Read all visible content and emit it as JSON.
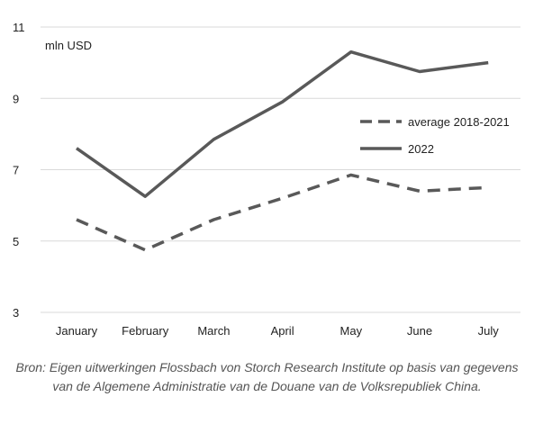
{
  "chart_data": {
    "type": "line",
    "unit_label": "mln USD",
    "categories": [
      "January",
      "February",
      "March",
      "April",
      "May",
      "June",
      "July"
    ],
    "y_ticks": [
      "3",
      "5",
      "7",
      "9",
      "11"
    ],
    "ylim": [
      3,
      11
    ],
    "grid": "horizontal",
    "legend_position": "right",
    "series": [
      {
        "name": "average 2018-2021",
        "style": "dashed",
        "color": "#595959",
        "values": [
          5.6,
          4.75,
          5.6,
          6.2,
          6.85,
          6.4,
          6.5
        ]
      },
      {
        "name": "2022",
        "style": "solid",
        "color": "#595959",
        "values": [
          7.6,
          6.25,
          7.85,
          8.9,
          10.3,
          9.75,
          10.0
        ]
      }
    ]
  },
  "caption": "Bron: Eigen uitwerkingen Flossbach von Storch Research Institute op basis van gegevens van de Algemene Administratie van de Douane van de Volksrepubliek China."
}
